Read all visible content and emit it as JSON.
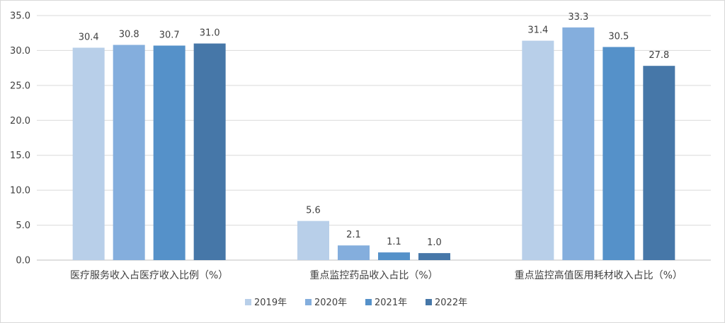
{
  "chart_data": {
    "type": "bar",
    "title": "",
    "xlabel": "",
    "ylabel": "",
    "categories": [
      "医疗服务收入占医疗收入比例（%）",
      "重点监控药品收入占比（%）",
      "重点监控高值医用耗材收入占比（%）"
    ],
    "series": [
      {
        "name": "2019年",
        "color": "#b8cfe9",
        "values": [
          30.4,
          5.6,
          31.4
        ]
      },
      {
        "name": "2020年",
        "color": "#84aedd",
        "values": [
          30.8,
          2.1,
          33.3
        ]
      },
      {
        "name": "2021年",
        "color": "#5591c9",
        "values": [
          30.7,
          1.1,
          30.5
        ]
      },
      {
        "name": "2022年",
        "color": "#4677a8",
        "values": [
          31.0,
          1.0,
          27.8
        ]
      }
    ],
    "ylim": [
      0,
      35
    ],
    "yticks": [
      "0.0",
      "5.0",
      "10.0",
      "15.0",
      "20.0",
      "25.0",
      "30.0",
      "35.0"
    ],
    "grid": true,
    "legend": "bottom-center",
    "data_labels": true
  }
}
